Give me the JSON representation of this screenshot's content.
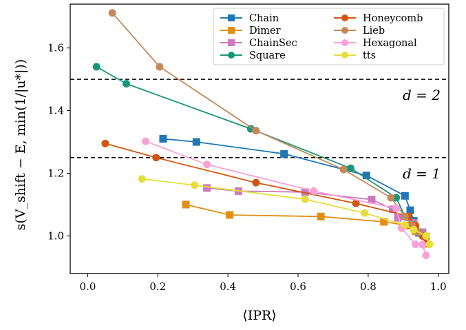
{
  "chart_data": {
    "type": "line",
    "xlabel": "⟨IPR⟩",
    "ylabel": "s(V_shift − E, min(1/|u*|))",
    "xlim": [
      -0.05,
      1.03
    ],
    "ylim": [
      0.88,
      1.74
    ],
    "xticks": [
      0.0,
      0.2,
      0.4,
      0.6,
      0.8,
      1.0
    ],
    "xtick_labels": [
      "0.0",
      "0.2",
      "0.4",
      "0.6",
      "0.8",
      "1.0"
    ],
    "yticks": [
      1.0,
      1.2,
      1.4,
      1.6
    ],
    "ytick_labels": [
      "1.0",
      "1.2",
      "1.4",
      "1.6"
    ],
    "grid": false,
    "legend_position": "top-right",
    "reference_lines": [
      {
        "y": 1.5,
        "label": "d = 2",
        "style": "dashed"
      },
      {
        "y": 1.25,
        "label": "d = 1",
        "style": "dashed"
      }
    ],
    "series": [
      {
        "name": "Chain",
        "color": "#1f77b4",
        "marker": "square",
        "x": [
          0.215,
          0.31,
          0.56,
          0.795,
          0.905,
          0.92,
          0.93,
          0.945
        ],
        "y": [
          1.31,
          1.3,
          1.262,
          1.193,
          1.128,
          1.082,
          1.048,
          1.01
        ]
      },
      {
        "name": "Dimer",
        "color": "#e08f14",
        "marker": "square",
        "x": [
          0.28,
          0.405,
          0.665,
          0.845,
          0.915,
          0.935,
          0.955,
          0.965
        ],
        "y": [
          1.1,
          1.067,
          1.062,
          1.045,
          1.033,
          1.015,
          1.005,
          0.998
        ]
      },
      {
        "name": "ChainSec",
        "color": "#cc79c0",
        "marker": "square",
        "x": [
          0.34,
          0.43,
          0.62,
          0.81,
          0.87,
          0.885,
          0.93,
          0.955
        ],
        "y": [
          1.153,
          1.143,
          1.14,
          1.116,
          1.085,
          1.058,
          1.042,
          1.012
        ]
      },
      {
        "name": "Square",
        "color": "#16967a",
        "marker": "circle",
        "x": [
          0.025,
          0.11,
          0.465,
          0.75,
          0.88,
          0.905,
          0.93,
          0.945
        ],
        "y": [
          1.54,
          1.486,
          1.342,
          1.216,
          1.122,
          1.062,
          1.035,
          1.012
        ]
      },
      {
        "name": "Honeycomb",
        "color": "#d2560f",
        "marker": "circle",
        "x": [
          0.05,
          0.195,
          0.48,
          0.765,
          0.915,
          0.935,
          0.955,
          0.965
        ],
        "y": [
          1.295,
          1.25,
          1.17,
          1.104,
          1.063,
          1.033,
          1.0,
          0.975
        ]
      },
      {
        "name": "Lieb",
        "color": "#c5885a",
        "marker": "circle",
        "x": [
          0.07,
          0.205,
          0.48,
          0.73,
          0.865,
          0.905,
          0.925,
          0.945
        ],
        "y": [
          1.712,
          1.54,
          1.336,
          1.212,
          1.122,
          1.062,
          1.036,
          1.012
        ]
      },
      {
        "name": "Hexagonal",
        "color": "#f9a2d6",
        "marker": "circle",
        "x": [
          0.165,
          0.34,
          0.645,
          0.88,
          0.895,
          0.935,
          0.955,
          0.965
        ],
        "y": [
          1.302,
          1.228,
          1.143,
          1.088,
          1.025,
          0.973,
          0.972,
          0.938
        ]
      },
      {
        "name": "tts",
        "color": "#e6de3a",
        "marker": "circle",
        "x": [
          0.155,
          0.305,
          0.62,
          0.79,
          0.905,
          0.93,
          0.965,
          0.975
        ],
        "y": [
          1.182,
          1.162,
          1.117,
          1.073,
          1.035,
          1.02,
          1.0,
          0.973
        ]
      }
    ]
  }
}
